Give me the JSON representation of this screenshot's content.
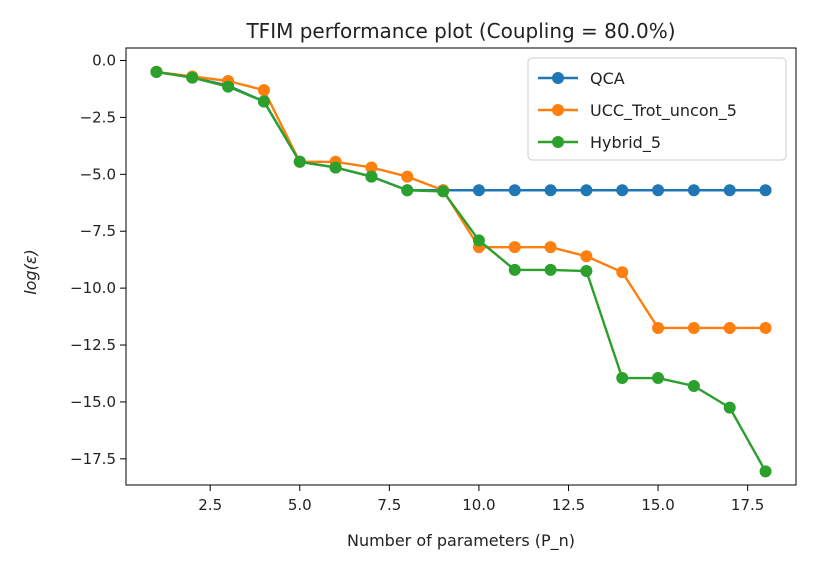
{
  "chart_data": {
    "type": "line",
    "title": "TFIM performance plot (Coupling = 80.0%)",
    "xlabel": "Number of parameters (P_n)",
    "ylabel": "log(ε)",
    "xlim": [
      0.15,
      18.85
    ],
    "ylim": [
      -18.65,
      0.55
    ],
    "xticks": [
      2.5,
      5.0,
      7.5,
      10.0,
      12.5,
      15.0,
      17.5
    ],
    "xtick_labels": [
      "2.5",
      "5.0",
      "7.5",
      "10.0",
      "12.5",
      "15.0",
      "17.5"
    ],
    "yticks": [
      0.0,
      -2.5,
      -5.0,
      -7.5,
      -10.0,
      -12.5,
      -15.0,
      -17.5
    ],
    "ytick_labels": [
      "0.0",
      "−2.5",
      "−5.0",
      "−7.5",
      "−10.0",
      "−12.5",
      "−15.0",
      "−17.5"
    ],
    "grid": false,
    "legend_position": "top-right",
    "x": [
      1,
      2,
      3,
      4,
      5,
      6,
      7,
      8,
      9,
      10,
      11,
      12,
      13,
      14,
      15,
      16,
      17,
      18
    ],
    "series": [
      {
        "name": "QCA",
        "color": "#1f77b4",
        "values": [
          -0.5,
          -0.75,
          -1.1,
          -1.8,
          -4.45,
          -4.7,
          -5.1,
          -5.7,
          -5.7,
          -5.7,
          -5.7,
          -5.7,
          -5.7,
          -5.7,
          -5.7,
          -5.7,
          -5.7,
          -5.7
        ]
      },
      {
        "name": "UCC_Trot_uncon_5",
        "color": "#ff7f0e",
        "values": [
          -0.5,
          -0.7,
          -0.9,
          -1.3,
          -4.45,
          -4.45,
          -4.7,
          -5.1,
          -5.7,
          -8.2,
          -8.2,
          -8.2,
          -8.6,
          -9.3,
          -11.75,
          -11.75,
          -11.75,
          -11.75
        ]
      },
      {
        "name": "Hybrid_5",
        "color": "#2ca02c",
        "values": [
          -0.5,
          -0.75,
          -1.15,
          -1.8,
          -4.45,
          -4.7,
          -5.1,
          -5.7,
          -5.75,
          -7.9,
          -9.2,
          -9.2,
          -9.25,
          -13.95,
          -13.95,
          -14.3,
          -15.25,
          -18.05
        ]
      }
    ]
  }
}
